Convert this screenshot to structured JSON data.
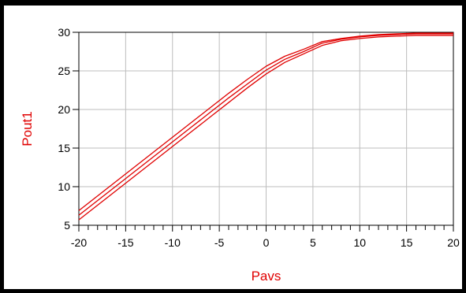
{
  "chart_data": {
    "type": "line",
    "title": "",
    "xlabel": "Pavs",
    "ylabel": "Pout1",
    "xlim": [
      -20,
      20
    ],
    "ylim": [
      5,
      30
    ],
    "x_ticks": [
      "-20",
      "-15",
      "-10",
      "-5",
      "0",
      "5",
      "10",
      "15",
      "20"
    ],
    "y_ticks": [
      "5",
      "10",
      "15",
      "20",
      "25",
      "30"
    ],
    "grid": true,
    "legend": "none",
    "series_color": "#e00000",
    "x": [
      -20,
      -18,
      -16,
      -14,
      -12,
      -10,
      -8,
      -6,
      -4,
      -2,
      0,
      2,
      4,
      6,
      8,
      10,
      12,
      14,
      16,
      18,
      20
    ],
    "series": [
      {
        "values": [
          6.9,
          8.8,
          10.7,
          12.6,
          14.5,
          16.4,
          18.3,
          20.2,
          22.1,
          23.9,
          25.6,
          26.9,
          27.8,
          28.8,
          29.2,
          29.5,
          29.7,
          29.8,
          29.9,
          29.9,
          29.9
        ]
      },
      {
        "values": [
          6.3,
          8.2,
          10.1,
          12.0,
          13.9,
          15.8,
          17.7,
          19.6,
          21.5,
          23.3,
          25.1,
          26.5,
          27.5,
          28.6,
          29.1,
          29.4,
          29.6,
          29.7,
          29.8,
          29.8,
          29.8
        ]
      },
      {
        "values": [
          5.7,
          7.6,
          9.5,
          11.4,
          13.3,
          15.2,
          17.1,
          19.0,
          20.9,
          22.8,
          24.6,
          26.1,
          27.2,
          28.3,
          28.9,
          29.2,
          29.4,
          29.5,
          29.6,
          29.6,
          29.6
        ]
      }
    ]
  }
}
